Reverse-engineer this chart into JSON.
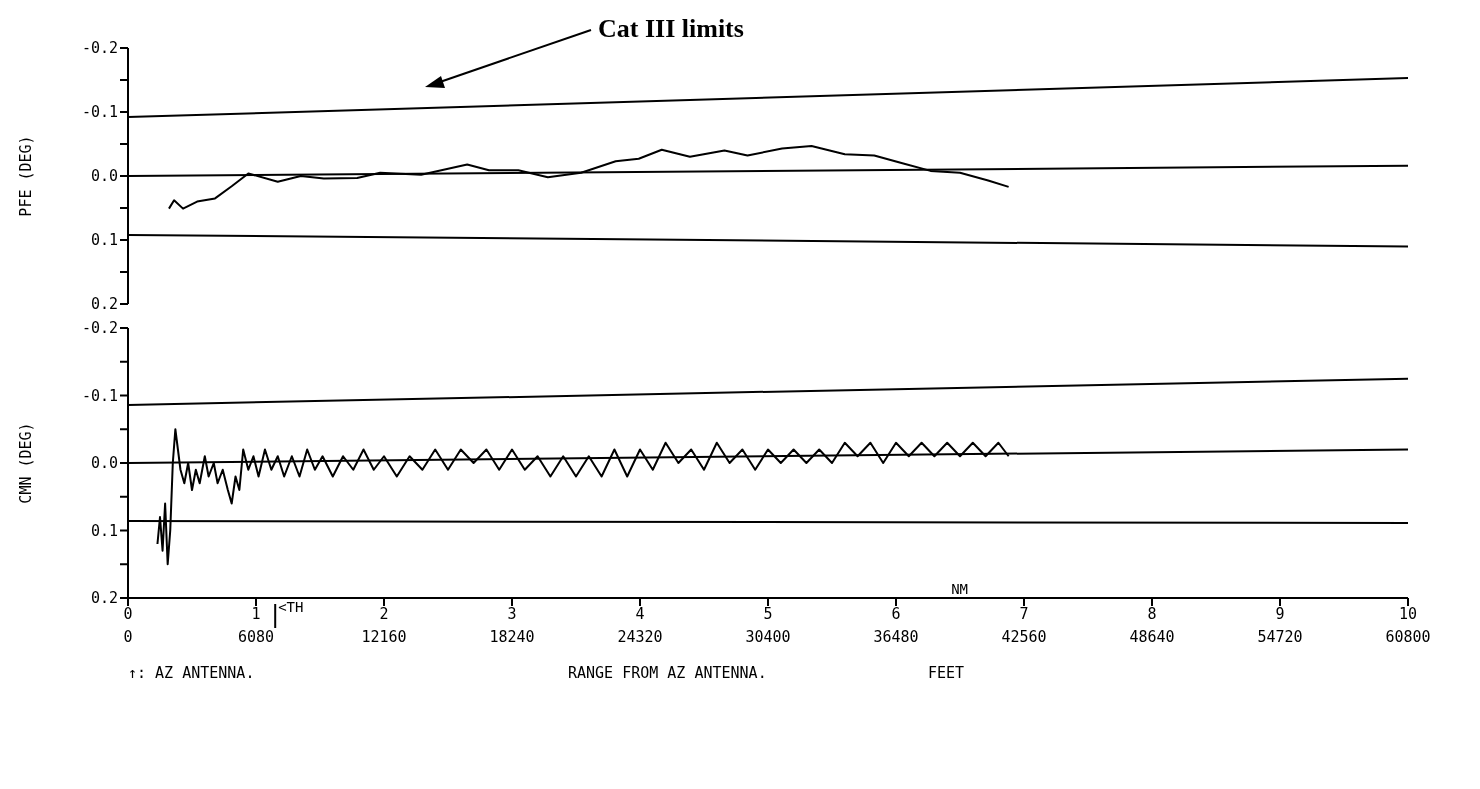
{
  "chart_data": [
    {
      "type": "line",
      "ylabel": "PFE   (DEG)",
      "ylim": [
        0.2,
        -0.2
      ],
      "yticks": [
        {
          "value": -0.2,
          "label": "-0.2"
        },
        {
          "value": -0.15,
          "label": null
        },
        {
          "value": -0.1,
          "label": "-0.1"
        },
        {
          "value": -0.05,
          "label": null
        },
        {
          "value": 0,
          "label": "0.0"
        },
        {
          "value": 0.05,
          "label": null
        },
        {
          "value": 0.1,
          "label": "0.1"
        },
        {
          "value": 0.15,
          "label": null
        },
        {
          "value": 0.2,
          "label": "0.2"
        }
      ],
      "xlim": [
        0,
        10
      ],
      "tick_labels": "y",
      "marker": "none",
      "line_style": "solid",
      "annotations": [
        "Cat III limits"
      ],
      "series": [
        {
          "color": "#000000",
          "x": [
            0,
            10
          ],
          "values": [
            -0.092,
            -0.153
          ]
        },
        {
          "color": "#000000",
          "x": [
            0,
            10
          ],
          "values": [
            0,
            -0.016
          ]
        },
        {
          "color": "#000000",
          "x": [
            0,
            10
          ],
          "values": [
            0.092,
            0.11
          ]
        },
        {
          "color": "#000000",
          "x": [
            0.32,
            0.36,
            0.43,
            0.54,
            0.68,
            0.81,
            0.94,
            1.17,
            1.35,
            1.53,
            1.79,
            1.97,
            2.29,
            2.65,
            2.82,
            3.05,
            3.28,
            3.54,
            3.81,
            3.99,
            4.17,
            4.39,
            4.66,
            4.84,
            5.11,
            5.34,
            5.6,
            5.83,
            6.05,
            6.27,
            6.5,
            6.72,
            6.88
          ],
          "values": [
            0.051,
            0.038,
            0.051,
            0.04,
            0.035,
            0.016,
            -0.004,
            0.009,
            0,
            0.004,
            0.003,
            -0.005,
            -0.002,
            -0.018,
            -0.009,
            -0.009,
            0.002,
            -0.005,
            -0.023,
            -0.027,
            -0.041,
            -0.03,
            -0.04,
            -0.032,
            -0.043,
            -0.047,
            -0.034,
            -0.032,
            -0.02,
            -0.008,
            -0.005,
            0.007,
            0.017
          ]
        }
      ]
    },
    {
      "type": "line",
      "ylabel": "CMN   (DEG)",
      "ylim": [
        0.2,
        -0.2
      ],
      "yticks": [
        {
          "value": -0.2,
          "label": "-0.2"
        },
        {
          "value": -0.15,
          "label": null
        },
        {
          "value": -0.1,
          "label": "-0.1"
        },
        {
          "value": -0.05,
          "label": null
        },
        {
          "value": 0,
          "label": "0.0"
        },
        {
          "value": 0.05,
          "label": null
        },
        {
          "value": 0.1,
          "label": "0.1"
        },
        {
          "value": 0.15,
          "label": null
        },
        {
          "value": 0.2,
          "label": "0.2"
        }
      ],
      "xlim": [
        0,
        10
      ],
      "xticks": [
        0,
        1,
        2,
        3,
        4,
        5,
        6,
        7,
        8,
        9,
        10
      ],
      "xlabel": "NM",
      "x2lim": [
        0,
        60800
      ],
      "x2ticks": [
        0,
        6080,
        12160,
        18240,
        24320,
        30400,
        36480,
        42560,
        48640,
        54720,
        60800
      ],
      "x2label": "RANGE FROM AZ ANTENNA.",
      "marker": "none",
      "line_style": "solid",
      "ref_lines": [
        {
          "axis": "x",
          "value": 1.15,
          "label": "<TH"
        }
      ],
      "annotations": [
        "↑: AZ ANTENNA.",
        "FEET"
      ],
      "series": [
        {
          "color": "#000000",
          "x": [
            0,
            10
          ],
          "values": [
            -0.086,
            -0.125
          ]
        },
        {
          "color": "#000000",
          "x": [
            0,
            10
          ],
          "values": [
            0,
            -0.02
          ]
        },
        {
          "color": "#000000",
          "x": [
            0,
            10
          ],
          "values": [
            0.086,
            0.089
          ]
        },
        {
          "color": "#000000",
          "x": [
            0.23,
            0.25,
            0.27,
            0.29,
            0.31,
            0.33,
            0.35,
            0.37,
            0.39,
            0.41,
            0.44,
            0.47,
            0.5,
            0.53,
            0.56,
            0.6,
            0.63,
            0.67,
            0.7,
            0.74,
            0.78,
            0.81,
            0.84,
            0.87,
            0.9,
            0.94,
            0.98,
            1.02,
            1.07,
            1.12,
            1.17,
            1.22,
            1.28,
            1.34,
            1.4,
            1.46,
            1.52,
            1.6,
            1.68,
            1.76,
            1.84,
            1.92,
            2.0,
            2.1,
            2.2,
            2.3,
            2.4,
            2.5,
            2.6,
            2.7,
            2.8,
            2.9,
            3.0,
            3.1,
            3.2,
            3.3,
            3.4,
            3.5,
            3.6,
            3.7,
            3.8,
            3.9,
            4.0,
            4.1,
            4.2,
            4.3,
            4.4,
            4.5,
            4.6,
            4.7,
            4.8,
            4.9,
            5.0,
            5.1,
            5.2,
            5.3,
            5.4,
            5.5,
            5.6,
            5.7,
            5.8,
            5.9,
            6.0,
            6.1,
            6.2,
            6.3,
            6.4,
            6.5,
            6.6,
            6.7,
            6.8,
            6.88
          ],
          "values": [
            0.12,
            0.08,
            0.13,
            0.06,
            0.15,
            0.1,
            0.0,
            -0.05,
            -0.02,
            0.01,
            0.03,
            0.0,
            0.04,
            0.01,
            0.03,
            -0.01,
            0.02,
            0.0,
            0.03,
            0.01,
            0.04,
            0.06,
            0.02,
            0.04,
            -0.02,
            0.01,
            -0.01,
            0.02,
            -0.02,
            0.01,
            -0.01,
            0.02,
            -0.01,
            0.02,
            -0.02,
            0.01,
            -0.01,
            0.02,
            -0.01,
            0.01,
            -0.02,
            0.01,
            -0.01,
            0.02,
            -0.01,
            0.01,
            -0.02,
            0.01,
            -0.02,
            0.0,
            -0.02,
            0.01,
            -0.02,
            0.01,
            -0.01,
            0.02,
            -0.01,
            0.02,
            -0.01,
            0.02,
            -0.02,
            0.02,
            -0.02,
            0.01,
            -0.03,
            0.0,
            -0.02,
            0.01,
            -0.03,
            0.0,
            -0.02,
            0.01,
            -0.02,
            0.0,
            -0.02,
            0.0,
            -0.02,
            0.0,
            -0.03,
            -0.01,
            -0.03,
            0.0,
            -0.03,
            -0.01,
            -0.03,
            -0.01,
            -0.03,
            -0.01,
            -0.03,
            -0.01,
            -0.03,
            -0.01
          ]
        }
      ]
    }
  ]
}
